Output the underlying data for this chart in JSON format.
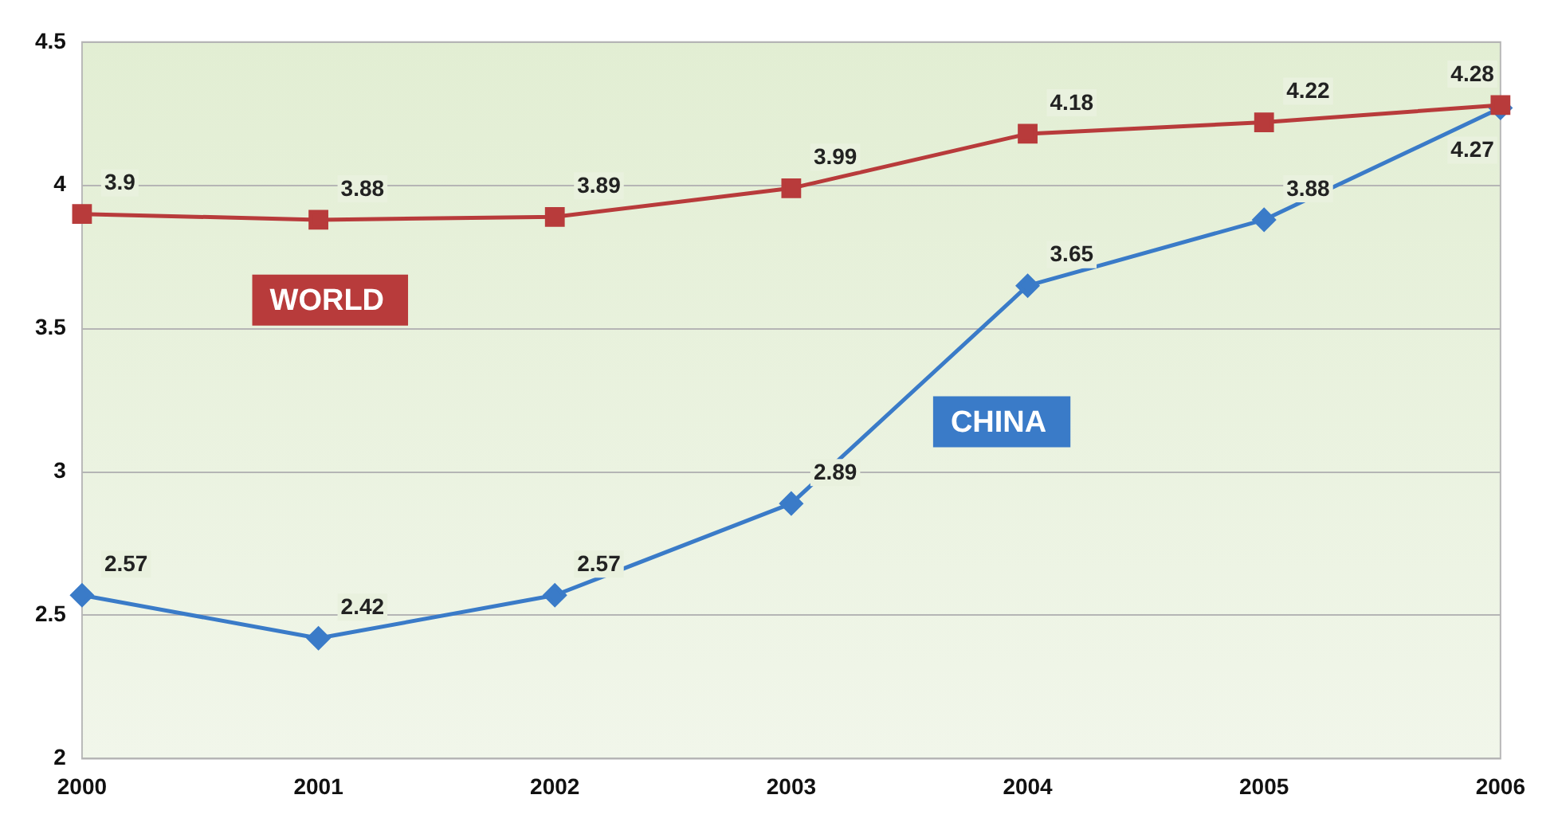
{
  "chart_data": {
    "type": "line",
    "categories": [
      "2000",
      "2001",
      "2002",
      "2003",
      "2004",
      "2005",
      "2006"
    ],
    "series": [
      {
        "name": "WORLD",
        "color": "#b83b3b",
        "values": [
          3.9,
          3.88,
          3.89,
          3.99,
          4.18,
          4.22,
          4.28
        ],
        "marker": "square"
      },
      {
        "name": "CHINA",
        "color": "#3a7bc8",
        "values": [
          2.57,
          2.42,
          2.57,
          2.89,
          3.65,
          3.88,
          4.27
        ],
        "marker": "diamond"
      }
    ],
    "ylim": [
      2,
      4.5
    ],
    "yticks": [
      2,
      2.5,
      3,
      3.5,
      4,
      4.5
    ],
    "grid": "y",
    "legend": false,
    "data_labels": true
  }
}
